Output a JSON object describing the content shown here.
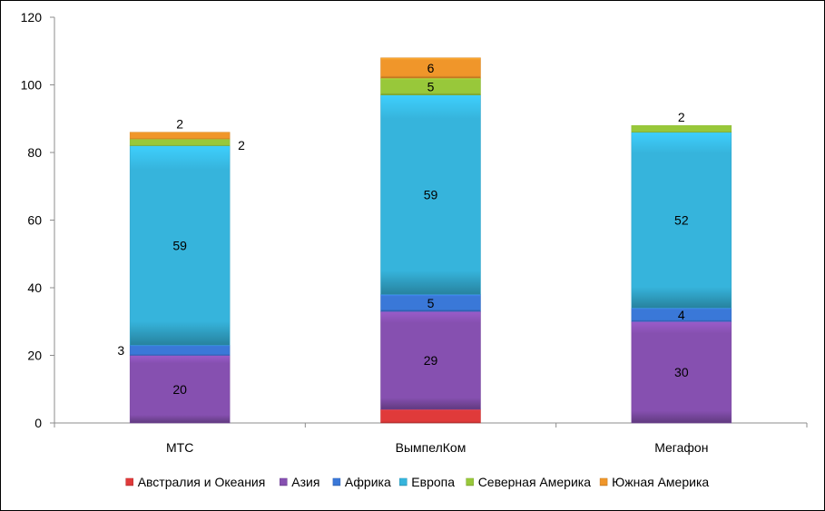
{
  "chart_data": {
    "type": "bar",
    "stacked": true,
    "categories": [
      "МТС",
      "ВымпелКом",
      "Мегафон"
    ],
    "series": [
      {
        "name": "Австралия и Океания",
        "color": "#e03a3a",
        "values": [
          0,
          4,
          0
        ]
      },
      {
        "name": "Азия",
        "color": "#8650b0",
        "values": [
          20,
          29,
          30
        ]
      },
      {
        "name": "Африка",
        "color": "#3a78d8",
        "values": [
          3,
          5,
          4
        ]
      },
      {
        "name": "Европа",
        "color": "#36b4dc",
        "values": [
          59,
          59,
          52
        ]
      },
      {
        "name": "Северная Америка",
        "color": "#98c83a",
        "values": [
          2,
          5,
          2
        ]
      },
      {
        "name": "Южная Америка",
        "color": "#f0962a",
        "values": [
          2,
          6,
          0
        ]
      }
    ],
    "data_labels": [
      {
        "category": 0,
        "series": 1,
        "text": "20"
      },
      {
        "category": 0,
        "series": 2,
        "text": "3"
      },
      {
        "category": 0,
        "series": 3,
        "text": "59"
      },
      {
        "category": 0,
        "series": 4,
        "text": "2"
      },
      {
        "category": 0,
        "series": 5,
        "text": "2"
      },
      {
        "category": 1,
        "series": 1,
        "text": "29"
      },
      {
        "category": 1,
        "series": 2,
        "text": "5"
      },
      {
        "category": 1,
        "series": 3,
        "text": "59"
      },
      {
        "category": 1,
        "series": 4,
        "text": "5"
      },
      {
        "category": 1,
        "series": 5,
        "text": "6"
      },
      {
        "category": 2,
        "series": 1,
        "text": "30"
      },
      {
        "category": 2,
        "series": 2,
        "text": "4"
      },
      {
        "category": 2,
        "series": 3,
        "text": "52"
      },
      {
        "category": 2,
        "series": 4,
        "text": "2"
      }
    ],
    "ylim": [
      0,
      120
    ],
    "yticks": [
      0,
      20,
      40,
      60,
      80,
      100,
      120
    ],
    "title": "",
    "xlabel": "",
    "ylabel": "",
    "grid": false,
    "legend_position": "bottom"
  }
}
